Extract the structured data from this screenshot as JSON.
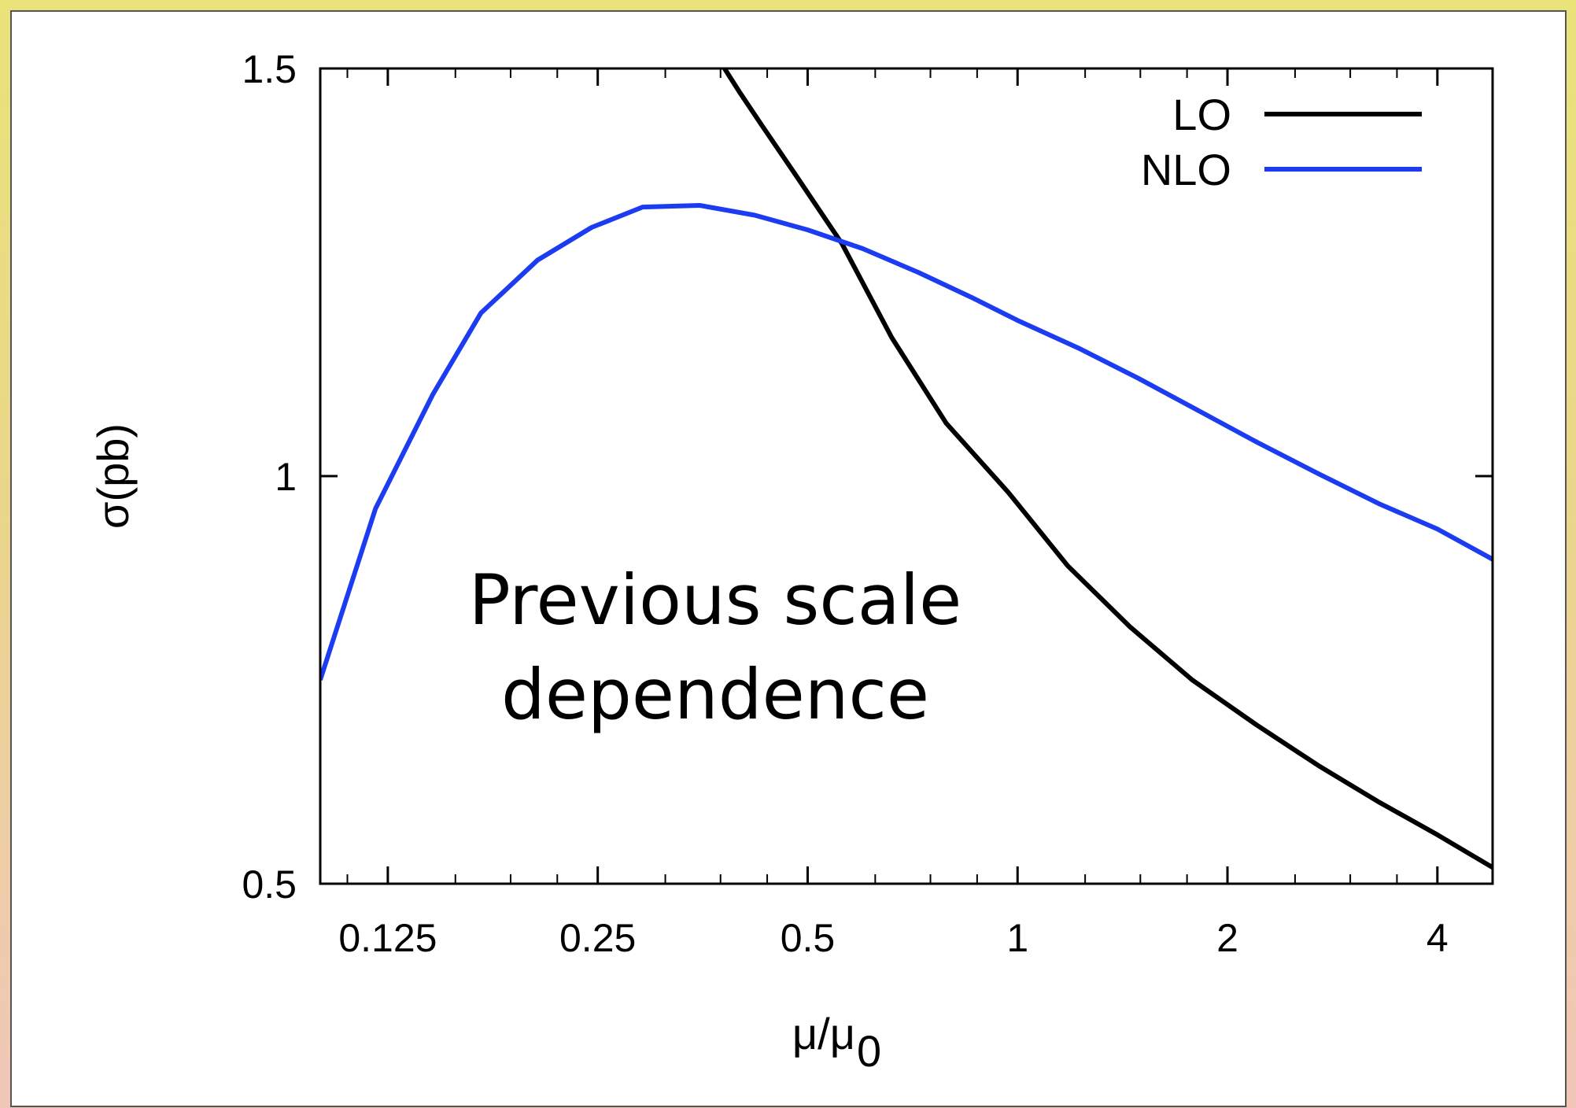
{
  "chart_data": {
    "type": "line",
    "title": "",
    "xlabel": "μ/μ",
    "xlabel_sub": "0",
    "ylabel": "σ(pb)",
    "x_scale": "log2",
    "xlim": [
      0.1,
      4.8
    ],
    "ylim": [
      0.5,
      1.5
    ],
    "x_ticks": [
      0.125,
      0.25,
      0.5,
      1,
      2,
      4
    ],
    "x_tick_labels": [
      "0.125",
      "0.25",
      "0.5",
      "1",
      "2",
      "4"
    ],
    "y_ticks": [
      0.5,
      1,
      1.5
    ],
    "y_tick_labels": [
      "0.5",
      "1",
      "1.5"
    ],
    "legend_position": "top-right",
    "annotation": [
      "Previous scale",
      "dependence"
    ],
    "series": [
      {
        "name": "LO",
        "color": "#000000",
        "x": [
          0.38,
          0.4,
          0.43,
          0.48,
          0.56,
          0.66,
          0.79,
          0.97,
          1.18,
          1.45,
          1.78,
          2.2,
          2.7,
          3.3,
          4.0,
          4.8
        ],
        "y": [
          1.5,
          1.47,
          1.43,
          1.37,
          1.285,
          1.17,
          1.065,
          0.98,
          0.89,
          0.815,
          0.75,
          0.695,
          0.645,
          0.6,
          0.56,
          0.52
        ]
      },
      {
        "name": "NLO",
        "color": "#1c3cf2",
        "x": [
          0.1,
          0.12,
          0.145,
          0.17,
          0.205,
          0.245,
          0.29,
          0.35,
          0.42,
          0.5,
          0.6,
          0.72,
          0.86,
          1.0,
          1.23,
          1.49,
          1.82,
          2.2,
          2.7,
          3.3,
          4.0,
          4.8
        ],
        "y": [
          0.75,
          0.96,
          1.1,
          1.2,
          1.265,
          1.305,
          1.33,
          1.332,
          1.32,
          1.302,
          1.279,
          1.25,
          1.219,
          1.191,
          1.156,
          1.12,
          1.08,
          1.042,
          1.003,
          0.966,
          0.935,
          0.898
        ]
      }
    ]
  }
}
